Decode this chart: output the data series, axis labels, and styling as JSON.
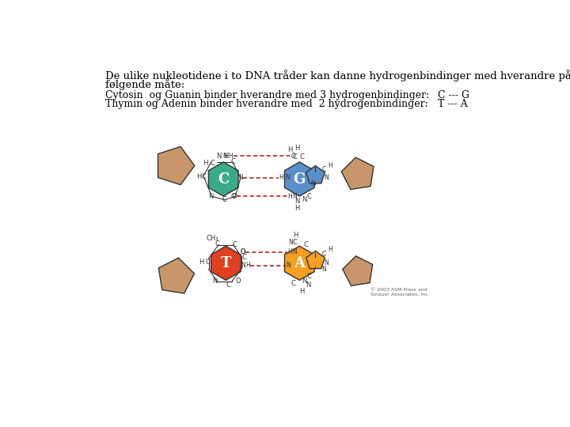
{
  "title_line1": "De ulike nukleotidene i to DNA tråder kan danne hydrogenbindinger med hverandre på",
  "title_line2": "følgende måte:",
  "text1": "Cytosin  og Guanin binder hverandre med 3 hydrogenbindinger:",
  "text2": "Thymin og Adenin binder hverandre med  2 hydrogenbindinger:",
  "label_cg": "C --- G",
  "label_ta": "T --- A",
  "bg_color": "#ffffff",
  "C_color": "#3aaa8c",
  "G_color": "#5b8fc9",
  "T_color": "#e04020",
  "A_color": "#f5a020",
  "sugar_color": "#c8966a",
  "hbond_color": "#aa2222",
  "copyright": "© 2003 ASM Press and\nSinauer Associates, Inc."
}
